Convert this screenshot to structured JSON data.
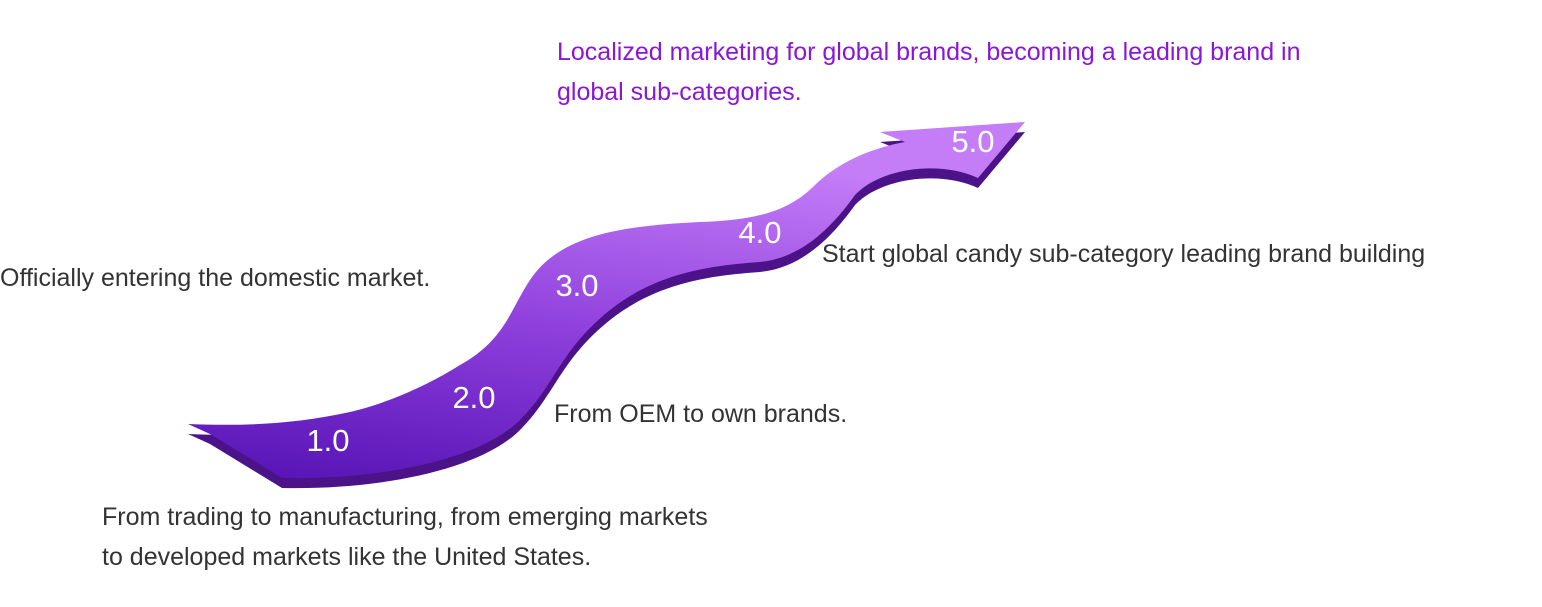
{
  "stages": [
    {
      "label": "1.0",
      "description": "From trading to manufacturing, from emerging markets to developed markets like the United States."
    },
    {
      "label": "2.0",
      "description": "From OEM to own brands."
    },
    {
      "label": "3.0",
      "description": "Officially entering the domestic market."
    },
    {
      "label": "4.0",
      "description": "Start global candy sub-category leading brand building"
    },
    {
      "label": "5.0",
      "description": "Localized marketing for global brands, becoming a leading brand in global sub-categories."
    }
  ]
}
